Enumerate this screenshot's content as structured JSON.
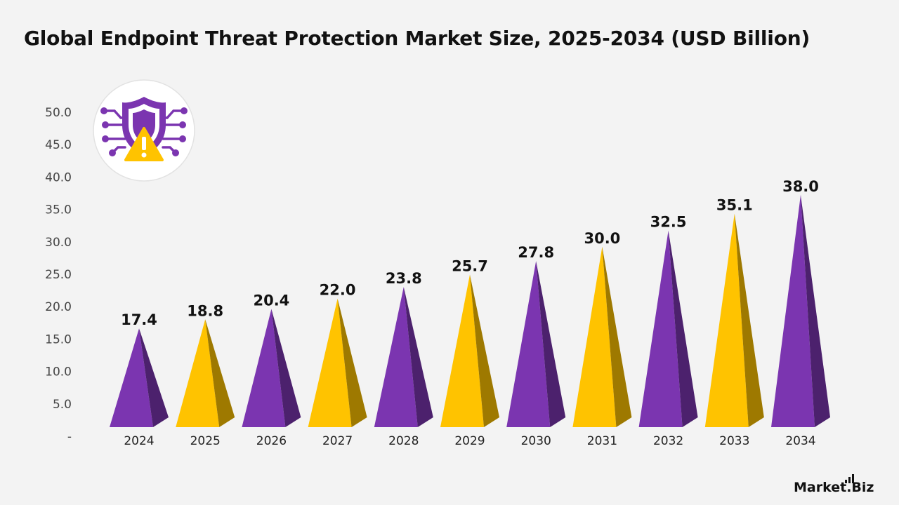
{
  "chart_data": {
    "type": "bar",
    "title": "Global Endpoint Threat Protection Market Size, 2025-2034 (USD Billion)",
    "categories": [
      "2024",
      "2025",
      "2026",
      "2027",
      "2028",
      "2029",
      "2030",
      "2031",
      "2032",
      "2033",
      "2034"
    ],
    "values": [
      17.4,
      18.8,
      20.4,
      22.0,
      23.8,
      25.7,
      27.8,
      30.0,
      32.5,
      35.1,
      38.0
    ],
    "value_labels": [
      "17.4",
      "18.8",
      "20.4",
      "22.0",
      "23.8",
      "25.7",
      "27.8",
      "30.0",
      "32.5",
      "35.1",
      "38.0"
    ],
    "yticks": [
      "-",
      "5.0",
      "10.0",
      "15.0",
      "20.0",
      "25.0",
      "30.0",
      "35.0",
      "40.0",
      "45.0",
      "50.0"
    ],
    "ylim": [
      0,
      50
    ],
    "grid": false,
    "legend": "none",
    "bar_style": "pyramid",
    "colors": [
      "#7b35b0",
      "#ffc300"
    ]
  },
  "logo": {
    "icon": "shield-alert-icon",
    "circle_color": "#ffffff",
    "shield_color": "#7b35b0",
    "warning_color": "#ffc300"
  },
  "brand": {
    "name": "Market.Biz"
  }
}
